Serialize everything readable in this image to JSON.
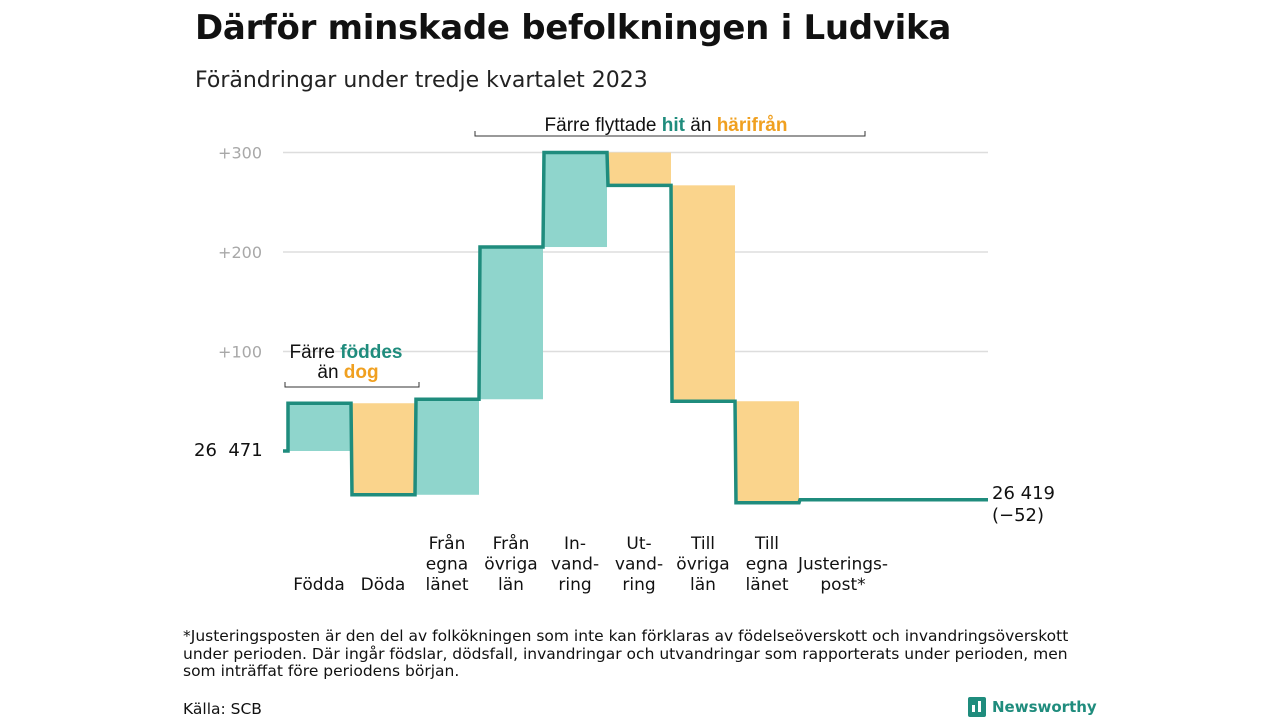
{
  "header": {
    "title": "Därför minskade befolkningen i Ludvika",
    "subtitle": "Förändringar under tredje kvartalet 2023"
  },
  "colors": {
    "inflow": "#8fd5cc",
    "outflow": "#fad48c",
    "line": "#1f8c7d",
    "grid": "#dddddd",
    "tick": "#a8a8a8"
  },
  "chart_data": {
    "type": "waterfall",
    "start_value_label": "26  471",
    "end_value_label": "26 419",
    "end_change_label": "(−52)",
    "y_ticks": [
      {
        "value": 100,
        "label": "+100"
      },
      {
        "value": 200,
        "label": "+200"
      },
      {
        "value": 300,
        "label": "+300"
      }
    ],
    "ylim": [
      -60,
      310
    ],
    "grid": true,
    "steps": [
      {
        "lines": [
          "Födda"
        ],
        "value": 48,
        "kind": "in"
      },
      {
        "lines": [
          "Döda"
        ],
        "value": -92,
        "kind": "out"
      },
      {
        "lines": [
          "Från",
          "egna",
          "länet"
        ],
        "value": 96,
        "kind": "in"
      },
      {
        "lines": [
          "Från",
          "övriga",
          "län"
        ],
        "value": 153,
        "kind": "in"
      },
      {
        "lines": [
          "In-",
          "vand-",
          "ring"
        ],
        "value": 95,
        "kind": "in"
      },
      {
        "lines": [
          "Ut-",
          "vand-",
          "ring"
        ],
        "value": -33,
        "kind": "out"
      },
      {
        "lines": [
          "Till",
          "övriga",
          "län"
        ],
        "value": -217,
        "kind": "out"
      },
      {
        "lines": [
          "Till",
          "egna",
          "länet"
        ],
        "value": -102,
        "kind": "out"
      },
      {
        "lines": [
          "Justerings-",
          "post*"
        ],
        "value": 3,
        "kind": "adj"
      }
    ],
    "annotations": {
      "births": {
        "prefix": "Färre ",
        "highlight1": "föddes",
        "middle": "än ",
        "highlight2": "dog"
      },
      "migration": {
        "prefix": "Färre flyttade ",
        "highlight1": "hit",
        "middle": " än ",
        "highlight2": "härifrån"
      }
    }
  },
  "footer": {
    "footnote": "*Justeringsposten är den del av folkökningen som inte kan förklaras av födelseöverskott och invandringsöverskott under perioden. Där ingår födslar, dödsfall, invandringar och utvandringar som rapporterats under perioden, men som inträffat före periodens början.",
    "source": "Källa: SCB",
    "brand": "Newsworthy"
  }
}
